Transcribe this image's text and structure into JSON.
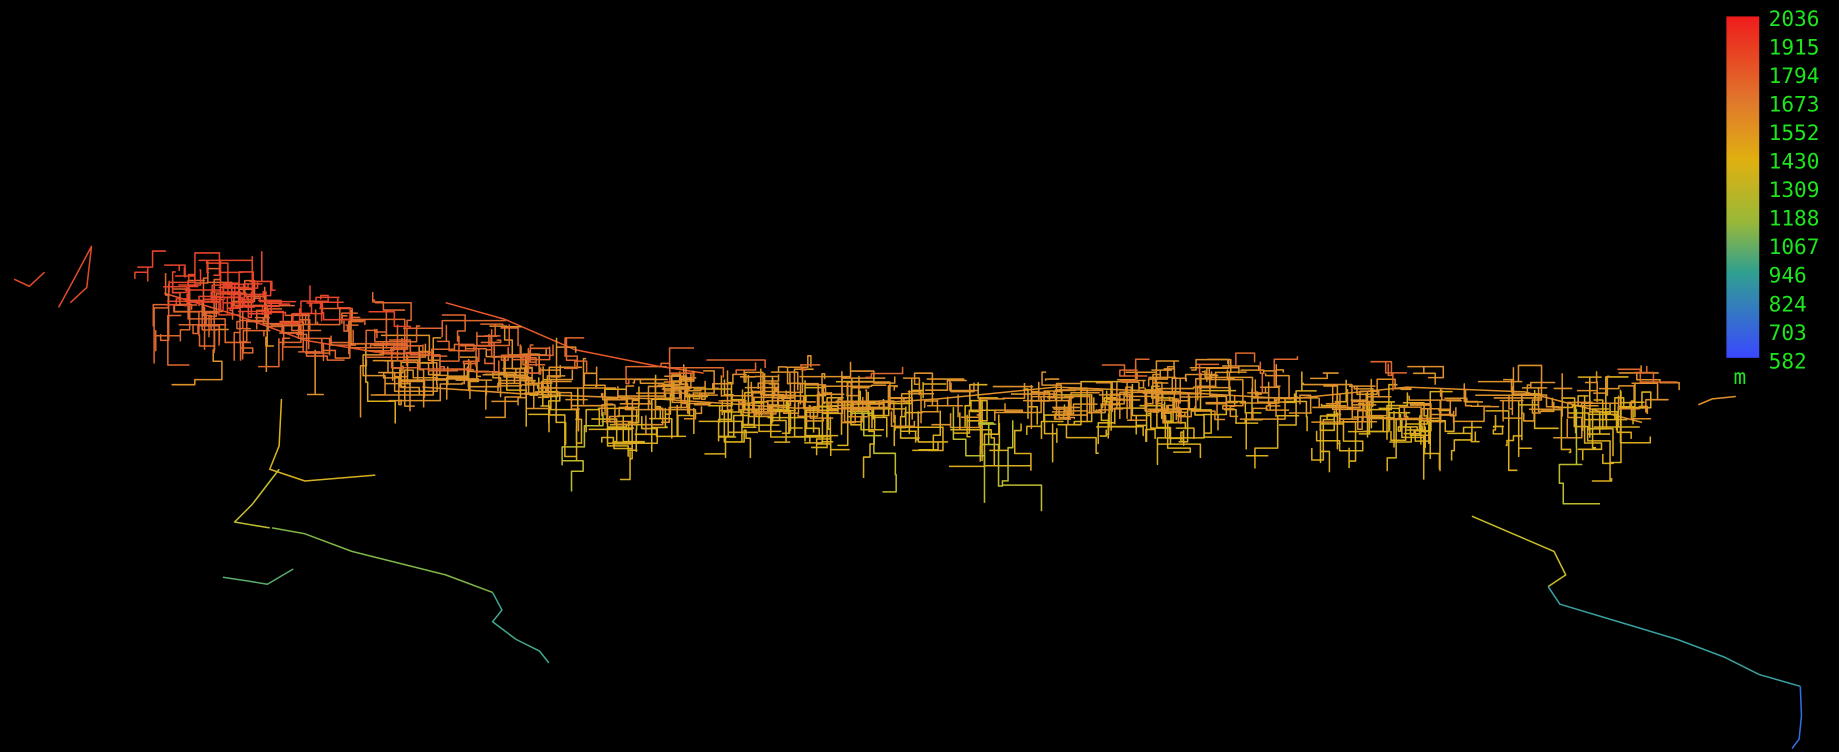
{
  "legend": {
    "ticks": [
      2036,
      1915,
      1794,
      1673,
      1552,
      1430,
      1309,
      1188,
      1067,
      946,
      824,
      703,
      582
    ],
    "unit": "m"
  }
}
